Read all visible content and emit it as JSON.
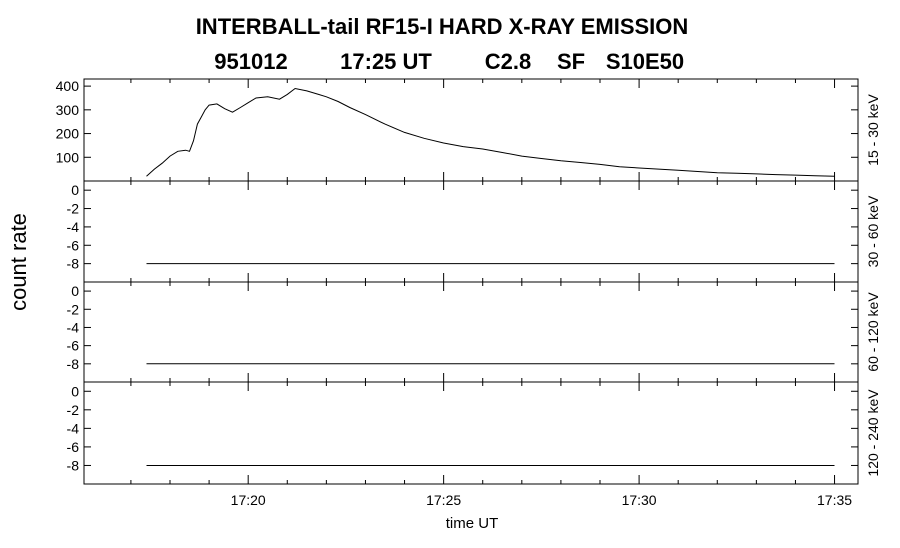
{
  "title_line1": "INTERBALL-tail  RF15-I  HARD  X-RAY  EMISSION",
  "title_line2_date": "951012",
  "title_line2_time": "17:25 UT",
  "title_line2_class": "C2.8",
  "title_line2_type": "SF",
  "title_line2_loc": "S10E50",
  "ylabel": "count rate",
  "xlabel": "time UT",
  "chart_data": [
    {
      "type": "line",
      "band_label": "15 - 30 keV",
      "x_unit": "minutes after 17:00 UT",
      "x_range": [
        15.8,
        35.6
      ],
      "y_range": [
        0,
        430
      ],
      "y_ticks": [
        100,
        200,
        300,
        400
      ],
      "y_tick_labels": [
        "100",
        "200",
        "300",
        "400"
      ],
      "series": [
        {
          "x": [
            17.4,
            17.6,
            17.8,
            18.0,
            18.2,
            18.4,
            18.5,
            18.6,
            18.7,
            18.8,
            18.9,
            19.0,
            19.2,
            19.4,
            19.6,
            19.8,
            20.0,
            20.2,
            20.5,
            20.8,
            21.0,
            21.2,
            21.5,
            21.8,
            22.0,
            22.3,
            22.6,
            23.0,
            23.5,
            24.0,
            24.5,
            25.0,
            25.5,
            26.0,
            26.5,
            27.0,
            27.5,
            28.0,
            28.5,
            29.0,
            29.5,
            30.0,
            30.5,
            31.0,
            31.5,
            32.0,
            32.5,
            33.0,
            33.5,
            34.0,
            34.5,
            35.0
          ],
          "y": [
            20,
            50,
            75,
            105,
            125,
            130,
            125,
            170,
            240,
            270,
            300,
            320,
            325,
            305,
            290,
            310,
            330,
            350,
            355,
            345,
            365,
            390,
            380,
            365,
            355,
            335,
            310,
            280,
            240,
            205,
            180,
            160,
            145,
            135,
            120,
            105,
            95,
            85,
            78,
            70,
            60,
            55,
            50,
            45,
            40,
            35,
            33,
            30,
            27,
            25,
            22,
            20
          ]
        }
      ]
    },
    {
      "type": "line",
      "band_label": "30 - 60 keV",
      "x_unit": "minutes after 17:00 UT",
      "x_range": [
        15.8,
        35.6
      ],
      "y_range": [
        -10,
        1
      ],
      "y_ticks": [
        -8,
        -6,
        -4,
        -2,
        0
      ],
      "y_tick_labels": [
        "-8",
        "-6",
        "-4",
        "-2",
        "0"
      ],
      "series": [
        {
          "x": [
            17.4,
            35.0
          ],
          "y": [
            -8,
            -8
          ]
        }
      ]
    },
    {
      "type": "line",
      "band_label": "60 - 120 keV",
      "x_unit": "minutes after 17:00 UT",
      "x_range": [
        15.8,
        35.6
      ],
      "y_range": [
        -10,
        1
      ],
      "y_ticks": [
        -8,
        -6,
        -4,
        -2,
        0
      ],
      "y_tick_labels": [
        "-8",
        "-6",
        "-4",
        "-2",
        "0"
      ],
      "series": [
        {
          "x": [
            17.4,
            35.0
          ],
          "y": [
            -8,
            -8
          ]
        }
      ]
    },
    {
      "type": "line",
      "band_label": "120 - 240 keV",
      "x_unit": "minutes after 17:00 UT",
      "x_range": [
        15.8,
        35.6
      ],
      "y_range": [
        -10,
        1
      ],
      "y_ticks": [
        -8,
        -6,
        -4,
        -2,
        0
      ],
      "y_tick_labels": [
        "-8",
        "-6",
        "-4",
        "-2",
        "0"
      ],
      "series": [
        {
          "x": [
            17.4,
            35.0
          ],
          "y": [
            -8,
            -8
          ]
        }
      ]
    }
  ],
  "x_axis": {
    "major_ticks": [
      20,
      25,
      30,
      35
    ],
    "major_tick_labels": [
      "17:20",
      "17:25",
      "17:30",
      "17:35"
    ],
    "minor_ticks": [
      17,
      18,
      19,
      21,
      22,
      23,
      24,
      26,
      27,
      28,
      29,
      31,
      32,
      33,
      34
    ]
  }
}
